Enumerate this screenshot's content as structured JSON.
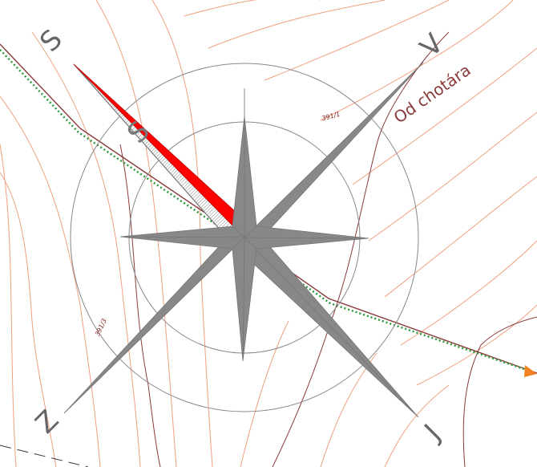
{
  "compass": {
    "nw": "S",
    "ne": "V",
    "sw": "Z",
    "se": "J",
    "needle": "S"
  },
  "annotation": {
    "boundary": "Od chotára"
  },
  "parcels": [
    "391/1",
    "391/3"
  ]
}
